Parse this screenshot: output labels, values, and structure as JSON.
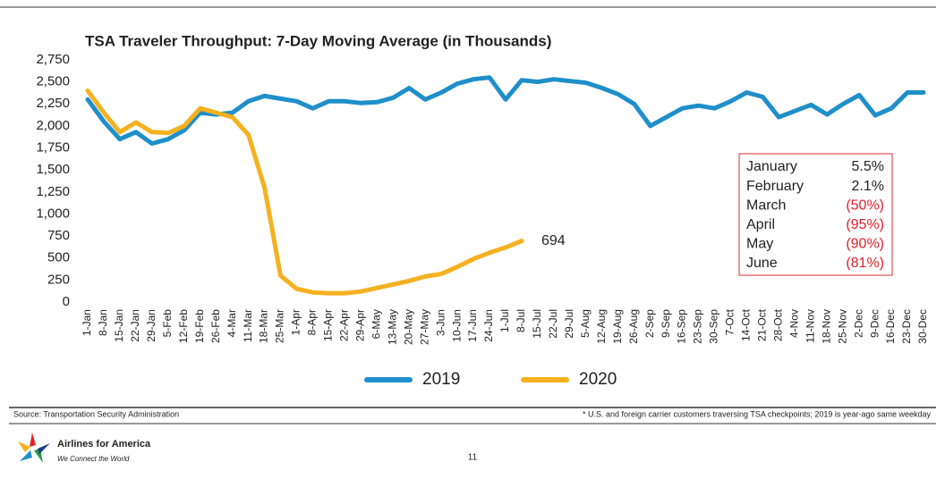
{
  "chart_data": {
    "type": "line",
    "title": "TSA Traveler Throughput: 7-Day Moving Average (in Thousands)",
    "categories": [
      "1-Jan",
      "8-Jan",
      "15-Jan",
      "22-Jan",
      "29-Jan",
      "5-Feb",
      "12-Feb",
      "19-Feb",
      "26-Feb",
      "4-Mar",
      "11-Mar",
      "18-Mar",
      "25-Mar",
      "1-Apr",
      "8-Apr",
      "15-Apr",
      "22-Apr",
      "29-Apr",
      "6-May",
      "13-May",
      "20-May",
      "27-May",
      "3-Jun",
      "10-Jun",
      "17-Jun",
      "24-Jun",
      "1-Jul",
      "8-Jul",
      "15-Jul",
      "22-Jul",
      "29-Jul",
      "5-Aug",
      "12-Aug",
      "19-Aug",
      "26-Aug",
      "2-Sep",
      "9-Sep",
      "16-Sep",
      "23-Sep",
      "30-Sep",
      "7-Oct",
      "14-Oct",
      "21-Oct",
      "28-Oct",
      "4-Nov",
      "11-Nov",
      "18-Nov",
      "25-Nov",
      "2-Dec",
      "9-Dec",
      "16-Dec",
      "23-Dec",
      "30-Dec"
    ],
    "series": [
      {
        "name": "2019",
        "color": "#1f8fc9",
        "values": [
          2300,
          2050,
          1850,
          1930,
          1800,
          1850,
          1950,
          2150,
          2130,
          2150,
          2280,
          2340,
          2310,
          2280,
          2200,
          2280,
          2280,
          2260,
          2270,
          2320,
          2430,
          2300,
          2380,
          2480,
          2530,
          2550,
          2300,
          2520,
          2500,
          2530,
          2510,
          2490,
          2430,
          2360,
          2250,
          2000,
          2100,
          2200,
          2230,
          2200,
          2280,
          2380,
          2330,
          2100,
          2170,
          2240,
          2130,
          2250,
          2350,
          2120,
          2200,
          2380,
          2380
        ]
      },
      {
        "name": "2020",
        "color": "#f5b120",
        "values": [
          2400,
          2150,
          1930,
          2040,
          1930,
          1920,
          2000,
          2200,
          2150,
          2100,
          1900,
          1300,
          300,
          150,
          110,
          100,
          100,
          120,
          160,
          200,
          240,
          290,
          320,
          400,
          490,
          560,
          620,
          694,
          null,
          null,
          null,
          null,
          null,
          null,
          null,
          null,
          null,
          null,
          null,
          null,
          null,
          null,
          null,
          null,
          null,
          null,
          null,
          null,
          null,
          null,
          null,
          null,
          null
        ]
      }
    ],
    "ylim": [
      0,
      2750
    ],
    "yticks": [
      0,
      250,
      500,
      750,
      {
        "value": 1000,
        "label": "1,000"
      },
      {
        "value": 1250,
        "label": "1,250"
      },
      {
        "value": 1500,
        "label": "1,500"
      },
      {
        "value": 1750,
        "label": "1,750"
      },
      {
        "value": 2000,
        "label": "2,000"
      },
      {
        "value": 2250,
        "label": "2,250"
      },
      {
        "value": 2500,
        "label": "2,500"
      },
      {
        "value": 2750,
        "label": "2,750"
      }
    ],
    "grid": false,
    "legend": "bottom"
  },
  "table": {
    "rows": [
      {
        "month": "January",
        "change": "5.5%",
        "color": "#222222"
      },
      {
        "month": "February",
        "change": "2.1%",
        "color": "#222222"
      },
      {
        "month": "March",
        "change": "(50%)",
        "color": "#e0202a"
      },
      {
        "month": "April",
        "change": "(95%)",
        "color": "#e0202a"
      },
      {
        "month": "May",
        "change": "(90%)",
        "color": "#e0202a"
      },
      {
        "month": "June",
        "change": "(81%)",
        "color": "#e0202a"
      }
    ]
  },
  "footer": {
    "source": "Source: Transportation Security Administration",
    "note": "* U.S. and foreign carrier customers traversing TSA checkpoints; 2019 is year-ago same weekday",
    "logo": "Airlines for America",
    "tagline": "We Connect the World",
    "page": "11"
  }
}
